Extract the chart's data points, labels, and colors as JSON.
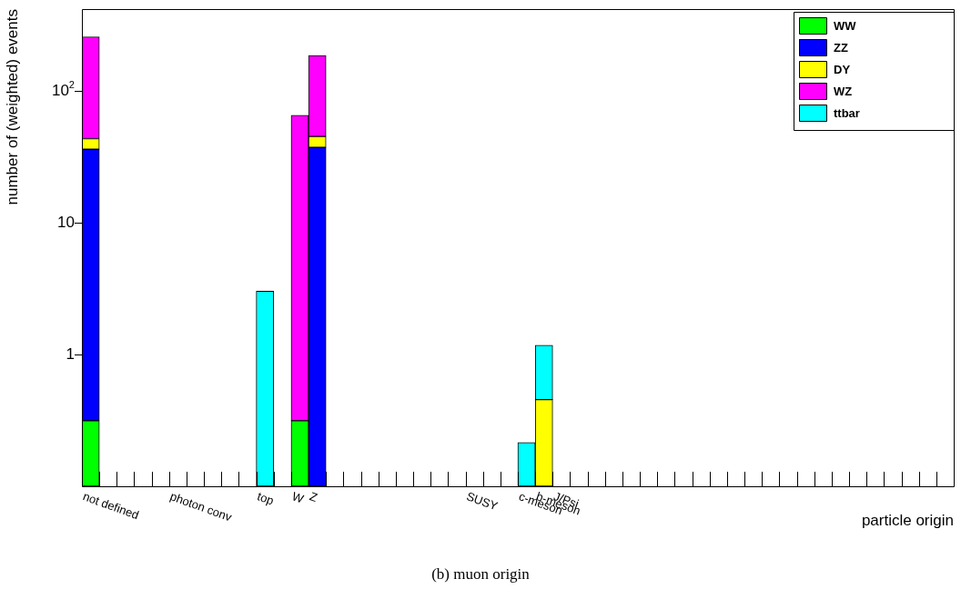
{
  "chart_data": {
    "type": "bar",
    "stacked": true,
    "log": true,
    "grid": false,
    "legend": "top right",
    "xlabel": "particle origin",
    "ylabel": "number of (weighted) events",
    "annotations": [
      "(b) muon origin"
    ],
    "categories": [
      "not defined",
      null,
      null,
      null,
      null,
      "photon conv",
      null,
      null,
      null,
      null,
      "top",
      null,
      "W",
      "Z",
      null,
      null,
      null,
      null,
      null,
      null,
      null,
      null,
      "SUSY",
      null,
      null,
      "c-meson",
      "b-meson",
      "J/Psi",
      null,
      null,
      null,
      null,
      null,
      null,
      null,
      null,
      null,
      null,
      null,
      null,
      null,
      null,
      null,
      null,
      null,
      null,
      null,
      null,
      null,
      null
    ],
    "ylim": [
      0.1,
      420
    ],
    "yticks": [
      1,
      10,
      {
        "value": 100,
        "label": "10$^{2}$"
      }
    ],
    "series": [
      {
        "name": "WW",
        "color": "#00ff00",
        "values": [
          0.315,
          null,
          null,
          null,
          null,
          null,
          null,
          null,
          null,
          null,
          null,
          null,
          0.315,
          null,
          null,
          null,
          null,
          null,
          null,
          null,
          null,
          null,
          null,
          null,
          null,
          null,
          null,
          null,
          null,
          null,
          null,
          null,
          null,
          null,
          null,
          null,
          null,
          null,
          null,
          null,
          null,
          null,
          null,
          null,
          null,
          null,
          null,
          null,
          null,
          null
        ]
      },
      {
        "name": "ZZ",
        "color": "#0000ff",
        "values": [
          35.9,
          null,
          null,
          null,
          null,
          null,
          null,
          null,
          null,
          null,
          null,
          null,
          null,
          37.4,
          null,
          null,
          null,
          null,
          null,
          null,
          null,
          null,
          null,
          null,
          null,
          null,
          null,
          null,
          null,
          null,
          null,
          null,
          null,
          null,
          null,
          null,
          null,
          null,
          null,
          null,
          null,
          null,
          null,
          null,
          null,
          null,
          null,
          null,
          null,
          null
        ]
      },
      {
        "name": "DY",
        "color": "#ffff00",
        "values": [
          7.4,
          null,
          null,
          null,
          null,
          null,
          null,
          null,
          null,
          null,
          null,
          null,
          null,
          7.9,
          null,
          null,
          null,
          null,
          null,
          null,
          null,
          null,
          null,
          null,
          null,
          null,
          0.455,
          null,
          null,
          null,
          null,
          null,
          null,
          null,
          null,
          null,
          null,
          null,
          null,
          null,
          null,
          null,
          null,
          null,
          null,
          null,
          null,
          null,
          null,
          null
        ]
      },
      {
        "name": "WZ",
        "color": "#ff00ff",
        "values": [
          215,
          null,
          null,
          null,
          null,
          null,
          null,
          null,
          null,
          null,
          null,
          null,
          65.3,
          141,
          null,
          null,
          null,
          null,
          null,
          null,
          null,
          null,
          null,
          null,
          null,
          null,
          null,
          null,
          null,
          null,
          null,
          null,
          null,
          null,
          null,
          null,
          null,
          null,
          null,
          null,
          null,
          null,
          null,
          null,
          null,
          null,
          null,
          null,
          null,
          null
        ]
      },
      {
        "name": "ttbar",
        "color": "#00ffff",
        "values": [
          null,
          null,
          null,
          null,
          null,
          null,
          null,
          null,
          null,
          null,
          3.03,
          null,
          null,
          null,
          null,
          null,
          null,
          null,
          null,
          null,
          null,
          null,
          null,
          null,
          null,
          0.215,
          0.72,
          null,
          null,
          null,
          null,
          null,
          null,
          null,
          null,
          null,
          null,
          null,
          null,
          null,
          null,
          null,
          null,
          null,
          null,
          null,
          null,
          null,
          null,
          null
        ]
      }
    ]
  }
}
